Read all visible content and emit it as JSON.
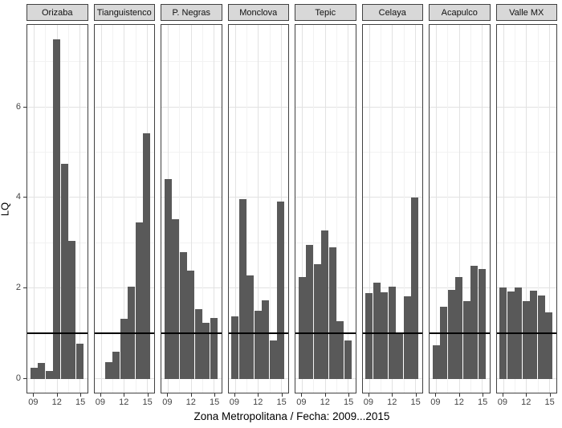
{
  "chart_data": {
    "type": "bar",
    "title": "",
    "xlabel": "Zona Metropolitana / Fecha: 2009...2015",
    "ylabel": "LQ",
    "ylim": [
      0,
      7.84
    ],
    "grid": true,
    "legend_position": "none",
    "reference_line_y": 1,
    "y_major_ticks": [
      0,
      2,
      4,
      6
    ],
    "y_minor_gridlines": [
      1,
      3,
      5,
      7
    ],
    "x_tick_years": [
      2009,
      2012,
      2015
    ],
    "x_tick_labels": [
      "09",
      "12",
      "15"
    ],
    "x_minor_gridline_years": [
      2010.5,
      2013.5
    ],
    "facets": [
      {
        "name": "Orizaba",
        "years": [
          2009,
          2010,
          2011,
          2012,
          2013,
          2014,
          2015
        ],
        "values": [
          0.25,
          0.36,
          0.18,
          7.5,
          4.75,
          3.05,
          0.78
        ]
      },
      {
        "name": "Tianguistenco",
        "years": [
          2010,
          2011,
          2012,
          2013,
          2014,
          2015
        ],
        "values": [
          0.38,
          0.6,
          1.33,
          2.04,
          3.46,
          5.42
        ]
      },
      {
        "name": "P. Negras",
        "years": [
          2009,
          2010,
          2011,
          2012,
          2013,
          2014,
          2015
        ],
        "values": [
          4.42,
          3.52,
          2.8,
          2.4,
          1.55,
          1.25,
          1.34
        ]
      },
      {
        "name": "Monclova",
        "years": [
          2009,
          2010,
          2011,
          2012,
          2013,
          2014,
          2015
        ],
        "values": [
          1.39,
          3.97,
          2.28,
          1.51,
          1.74,
          0.85,
          3.92
        ]
      },
      {
        "name": "Tepic",
        "years": [
          2009,
          2010,
          2011,
          2012,
          2013,
          2014,
          2015
        ],
        "values": [
          2.26,
          2.96,
          2.54,
          3.28,
          2.9,
          1.27,
          0.86
        ]
      },
      {
        "name": "Celaya",
        "years": [
          2009,
          2010,
          2011,
          2012,
          2013,
          2014,
          2015
        ],
        "values": [
          1.9,
          2.12,
          1.92,
          2.04,
          1.02,
          1.83,
          4.01
        ]
      },
      {
        "name": "Acapulco",
        "years": [
          2009,
          2010,
          2011,
          2012,
          2013,
          2014,
          2015
        ],
        "values": [
          0.75,
          1.6,
          1.97,
          2.26,
          1.72,
          2.5,
          2.43
        ]
      },
      {
        "name": "Valle MX",
        "years": [
          2009,
          2010,
          2011,
          2012,
          2013,
          2014,
          2015
        ],
        "values": [
          2.03,
          1.93,
          2.03,
          1.72,
          1.95,
          1.84,
          1.48
        ]
      }
    ],
    "colors": {
      "bar": "#595959",
      "strip_background": "#d8d8d8",
      "panel_border": "#414141",
      "grid_major": "#e2e2e2",
      "grid_minor": "#f2f2f2",
      "reference_line": "#000000",
      "tick_label": "#444444"
    }
  }
}
